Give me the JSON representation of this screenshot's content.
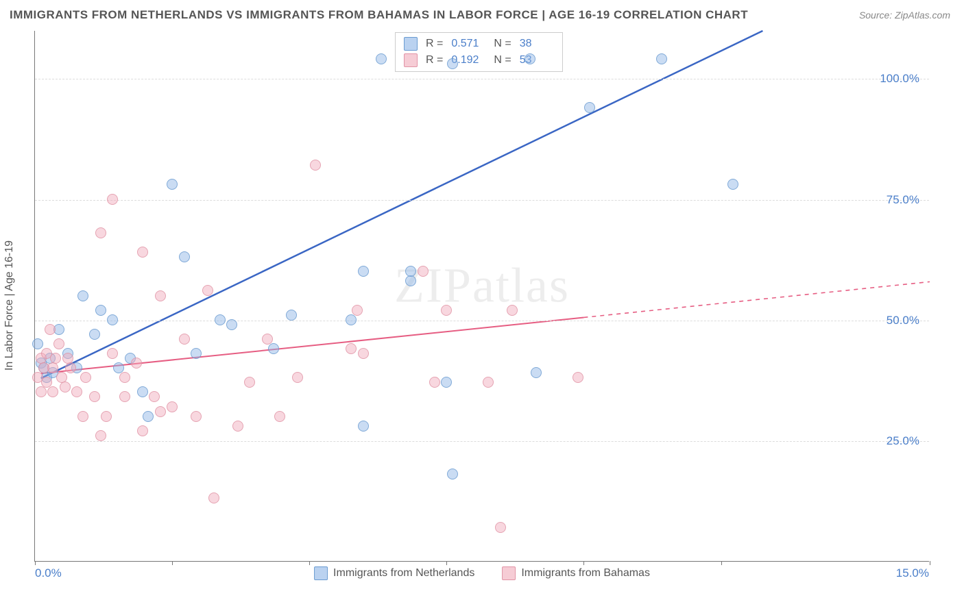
{
  "title": "IMMIGRANTS FROM NETHERLANDS VS IMMIGRANTS FROM BAHAMAS IN LABOR FORCE | AGE 16-19 CORRELATION CHART",
  "source": "Source: ZipAtlas.com",
  "ylabel": "In Labor Force | Age 16-19",
  "watermark": "ZIPatlas",
  "chart": {
    "type": "scatter",
    "xlim": [
      0,
      15
    ],
    "ylim": [
      0,
      110
    ],
    "xtick_positions": [
      0,
      2.3,
      4.6,
      6.9,
      9.2,
      11.5,
      15
    ],
    "xtick_labels_visible": {
      "0": "0.0%",
      "15": "15.0%"
    },
    "ytick_positions": [
      25,
      50,
      75,
      100
    ],
    "ytick_labels": [
      "25.0%",
      "50.0%",
      "75.0%",
      "100.0%"
    ],
    "grid_color": "#dcdcdc",
    "axis_color": "#777777",
    "label_color": "#4a7ec9",
    "title_color": "#555555",
    "title_fontsize": 17,
    "label_fontsize": 17,
    "background_color": "#ffffff",
    "marker_radius": 8,
    "series": [
      {
        "name": "Immigrants from Netherlands",
        "color_fill": "rgba(140,180,230,0.55)",
        "color_stroke": "#6a9bd1",
        "r": 0.571,
        "n": 38,
        "trend": {
          "x1": 0.1,
          "y1": 38,
          "x2": 12.2,
          "y2": 110,
          "solid_until_x": 12.2,
          "line_color": "#3a66c4",
          "line_width": 2.5
        },
        "points": [
          [
            0.05,
            45
          ],
          [
            0.1,
            41
          ],
          [
            0.15,
            40
          ],
          [
            0.2,
            38
          ],
          [
            0.25,
            42
          ],
          [
            0.3,
            39
          ],
          [
            0.4,
            48
          ],
          [
            0.55,
            43
          ],
          [
            0.7,
            40
          ],
          [
            0.8,
            55
          ],
          [
            1.0,
            47
          ],
          [
            1.1,
            52
          ],
          [
            1.3,
            50
          ],
          [
            1.4,
            40
          ],
          [
            1.6,
            42
          ],
          [
            1.8,
            35
          ],
          [
            1.9,
            30
          ],
          [
            2.3,
            78
          ],
          [
            2.5,
            63
          ],
          [
            2.7,
            43
          ],
          [
            3.1,
            50
          ],
          [
            3.3,
            49
          ],
          [
            4.0,
            44
          ],
          [
            4.3,
            51
          ],
          [
            5.3,
            50
          ],
          [
            5.5,
            60
          ],
          [
            5.5,
            28
          ],
          [
            5.8,
            104
          ],
          [
            6.3,
            58
          ],
          [
            6.3,
            60
          ],
          [
            6.9,
            37
          ],
          [
            7.0,
            103
          ],
          [
            7.0,
            18
          ],
          [
            8.3,
            104
          ],
          [
            8.4,
            39
          ],
          [
            9.3,
            94
          ],
          [
            10.5,
            104
          ],
          [
            11.7,
            78
          ]
        ]
      },
      {
        "name": "Immigrants from Bahamas",
        "color_fill": "rgba(240,170,185,0.55)",
        "color_stroke": "#e193a5",
        "r": 0.192,
        "n": 53,
        "trend": {
          "x1": 0.1,
          "y1": 39,
          "x2": 15.0,
          "y2": 58,
          "solid_until_x": 9.2,
          "line_color": "#e65d82",
          "line_width": 2
        },
        "points": [
          [
            0.05,
            38
          ],
          [
            0.1,
            35
          ],
          [
            0.1,
            42
          ],
          [
            0.15,
            40
          ],
          [
            0.2,
            37
          ],
          [
            0.2,
            43
          ],
          [
            0.25,
            48
          ],
          [
            0.3,
            40
          ],
          [
            0.3,
            35
          ],
          [
            0.35,
            42
          ],
          [
            0.4,
            45
          ],
          [
            0.45,
            38
          ],
          [
            0.5,
            36
          ],
          [
            0.55,
            42
          ],
          [
            0.6,
            40
          ],
          [
            0.7,
            35
          ],
          [
            0.8,
            30
          ],
          [
            0.85,
            38
          ],
          [
            1.0,
            34
          ],
          [
            1.1,
            26
          ],
          [
            1.1,
            68
          ],
          [
            1.2,
            30
          ],
          [
            1.3,
            43
          ],
          [
            1.3,
            75
          ],
          [
            1.5,
            38
          ],
          [
            1.5,
            34
          ],
          [
            1.7,
            41
          ],
          [
            1.8,
            27
          ],
          [
            1.8,
            64
          ],
          [
            2.0,
            34
          ],
          [
            2.1,
            31
          ],
          [
            2.1,
            55
          ],
          [
            2.3,
            32
          ],
          [
            2.5,
            46
          ],
          [
            2.7,
            30
          ],
          [
            2.9,
            56
          ],
          [
            3.0,
            13
          ],
          [
            3.4,
            28
          ],
          [
            3.6,
            37
          ],
          [
            3.9,
            46
          ],
          [
            4.1,
            30
          ],
          [
            4.4,
            38
          ],
          [
            4.7,
            82
          ],
          [
            5.3,
            44
          ],
          [
            5.4,
            52
          ],
          [
            5.5,
            43
          ],
          [
            6.5,
            60
          ],
          [
            6.7,
            37
          ],
          [
            6.9,
            52
          ],
          [
            7.6,
            37
          ],
          [
            7.8,
            7
          ],
          [
            8.0,
            52
          ],
          [
            9.1,
            38
          ]
        ]
      }
    ]
  },
  "legend_top": [
    {
      "swatch": "blue",
      "r_label": "R =",
      "r_val": "0.571",
      "n_label": "N =",
      "n_val": "38"
    },
    {
      "swatch": "pink",
      "r_label": "R =",
      "r_val": "0.192",
      "n_label": "N =",
      "n_val": "53"
    }
  ],
  "legend_bottom": [
    {
      "swatch": "blue",
      "label": "Immigrants from Netherlands"
    },
    {
      "swatch": "pink",
      "label": "Immigrants from Bahamas"
    }
  ]
}
